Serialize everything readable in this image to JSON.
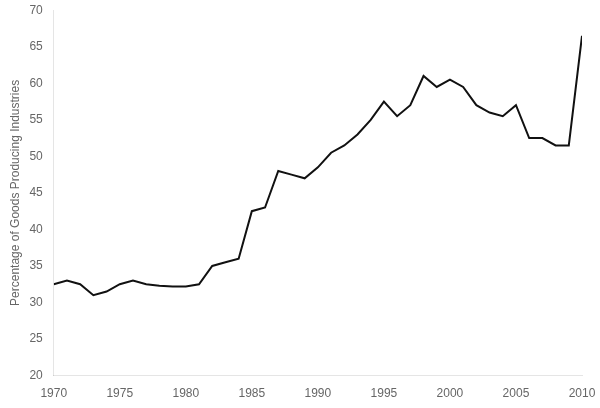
{
  "chart_data": {
    "type": "line",
    "x": [
      1970,
      1971,
      1972,
      1973,
      1974,
      1975,
      1976,
      1977,
      1978,
      1979,
      1980,
      1981,
      1982,
      1983,
      1984,
      1985,
      1986,
      1987,
      1988,
      1989,
      1990,
      1991,
      1992,
      1993,
      1994,
      1995,
      1996,
      1997,
      1998,
      1999,
      2000,
      2001,
      2002,
      2003,
      2004,
      2005,
      2006,
      2007,
      2008,
      2009,
      2010
    ],
    "values": [
      32.5,
      33.0,
      32.5,
      31.0,
      31.5,
      32.5,
      33.0,
      32.5,
      32.3,
      32.2,
      32.2,
      32.5,
      35.0,
      35.5,
      36.0,
      42.5,
      43.0,
      48.0,
      47.5,
      47.0,
      48.5,
      50.5,
      51.5,
      53.0,
      55.0,
      57.5,
      55.5,
      57.0,
      61.0,
      59.5,
      60.5,
      59.5,
      57.0,
      56.0,
      55.5,
      57.0,
      52.5,
      52.5,
      51.5,
      51.5,
      66.5
    ],
    "color": "#111111",
    "ylabel": "Percentage of Goods Producing Industries",
    "xlim": [
      1970,
      2010
    ],
    "ylim": [
      20,
      70
    ],
    "xticks": [
      1970,
      1975,
      1980,
      1985,
      1990,
      1995,
      2000,
      2005,
      2010
    ],
    "yticks": [
      20,
      25,
      30,
      35,
      40,
      45,
      50,
      55,
      60,
      65,
      70
    ],
    "grid": false
  }
}
